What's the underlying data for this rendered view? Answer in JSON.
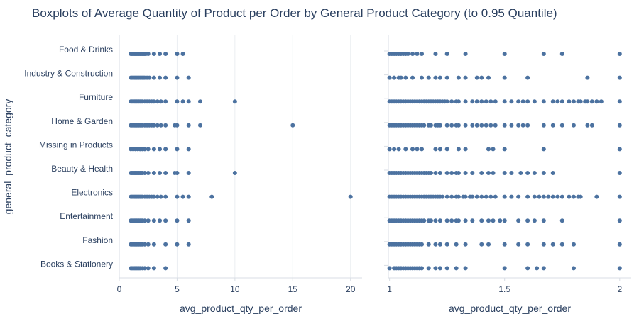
{
  "chart_data": {
    "type": "box",
    "title": "Boxplots of Average Quantity of Product per Order by General Product Category (to 0.95 Quantile)",
    "ylabel": "general_product_category",
    "marker_color": "#4c72a0",
    "categories": [
      "Food & Drinks",
      "Industry & Construction",
      "Furniture",
      "Home & Garden",
      "Missing in Products",
      "Beauty & Health",
      "Electronics",
      "Entertainment",
      "Fashion",
      "Books & Stationery"
    ],
    "panels": [
      {
        "name": "full",
        "xlabel": "avg_product_qty_per_order",
        "xlim": [
          0,
          21
        ],
        "xticks": [
          0,
          5,
          10,
          15,
          20
        ],
        "series": [
          {
            "category": "Food & Drinks",
            "values": [
              1,
              1.1,
              1.2,
              1.3,
              1.4,
              1.5,
              1.6,
              1.7,
              1.8,
              1.9,
              2,
              2.1,
              2.2,
              2.3,
              2.5,
              3,
              3.5,
              4,
              5,
              5.5
            ]
          },
          {
            "category": "Industry & Construction",
            "values": [
              1,
              1.1,
              1.2,
              1.3,
              1.4,
              1.5,
              1.6,
              1.7,
              1.8,
              1.9,
              2,
              2.1,
              2.2,
              2.4,
              2.6,
              3,
              3.5,
              4,
              5,
              6
            ]
          },
          {
            "category": "Furniture",
            "values": [
              1,
              1.1,
              1.2,
              1.3,
              1.4,
              1.5,
              1.6,
              1.7,
              1.8,
              1.9,
              2,
              2.2,
              2.4,
              2.6,
              2.8,
              3,
              3.3,
              3.6,
              4,
              5,
              5.5,
              6,
              7,
              10
            ]
          },
          {
            "category": "Home & Garden",
            "values": [
              1,
              1.1,
              1.2,
              1.3,
              1.4,
              1.5,
              1.6,
              1.7,
              1.8,
              1.9,
              2,
              2.2,
              2.4,
              2.6,
              2.8,
              3,
              3.3,
              3.6,
              4,
              4.8,
              5,
              6,
              7,
              15
            ]
          },
          {
            "category": "Missing in Products",
            "values": [
              1,
              1.2,
              1.4,
              1.6,
              1.8,
              2,
              2.2,
              2.5,
              3,
              3.5,
              4,
              5,
              6
            ]
          },
          {
            "category": "Beauty & Health",
            "values": [
              1,
              1.1,
              1.2,
              1.3,
              1.4,
              1.5,
              1.6,
              1.7,
              1.8,
              1.9,
              2,
              2.2,
              2.5,
              3,
              3.5,
              4,
              4.8,
              5,
              6,
              10
            ]
          },
          {
            "category": "Electronics",
            "values": [
              1,
              1.1,
              1.2,
              1.3,
              1.4,
              1.5,
              1.6,
              1.7,
              1.8,
              1.9,
              2,
              2.2,
              2.4,
              2.6,
              2.8,
              3,
              3.3,
              3.6,
              4,
              5,
              5.5,
              6,
              8,
              20
            ]
          },
          {
            "category": "Entertainment",
            "values": [
              1,
              1.1,
              1.2,
              1.3,
              1.4,
              1.5,
              1.6,
              1.7,
              1.8,
              1.9,
              2,
              2.2,
              2.5,
              3,
              3.5,
              4,
              5,
              6
            ]
          },
          {
            "category": "Fashion",
            "values": [
              1,
              1.1,
              1.2,
              1.3,
              1.4,
              1.5,
              1.6,
              1.7,
              1.8,
              1.9,
              2,
              2.2,
              2.5,
              3,
              4,
              5,
              6
            ]
          },
          {
            "category": "Books & Stationery",
            "values": [
              1,
              1.1,
              1.2,
              1.3,
              1.4,
              1.5,
              1.6,
              1.7,
              1.8,
              2,
              2.2,
              2.5,
              3,
              4
            ]
          }
        ]
      },
      {
        "name": "quantile",
        "xlabel": "avg_product_qty_per_order",
        "xlim": [
          0.995,
          2.05
        ],
        "xticks": [
          1,
          1.5,
          2
        ],
        "xticklabels": [
          "1",
          "1.5",
          "2"
        ],
        "series": [
          {
            "category": "Food & Drinks",
            "values": [
              1,
              1.01,
              1.02,
              1.03,
              1.04,
              1.05,
              1.06,
              1.07,
              1.08,
              1.1,
              1.12,
              1.14,
              1.2,
              1.25,
              1.33,
              1.5,
              1.67,
              1.75,
              2
            ]
          },
          {
            "category": "Industry & Construction",
            "values": [
              1,
              1.02,
              1.04,
              1.05,
              1.07,
              1.1,
              1.14,
              1.17,
              1.2,
              1.22,
              1.25,
              1.3,
              1.33,
              1.38,
              1.4,
              1.43,
              1.5,
              1.6,
              1.86,
              2
            ]
          },
          {
            "category": "Furniture",
            "values": [
              1,
              1.01,
              1.02,
              1.03,
              1.04,
              1.05,
              1.06,
              1.07,
              1.08,
              1.09,
              1.1,
              1.11,
              1.12,
              1.13,
              1.14,
              1.15,
              1.16,
              1.17,
              1.18,
              1.19,
              1.2,
              1.21,
              1.22,
              1.23,
              1.24,
              1.25,
              1.27,
              1.29,
              1.3,
              1.33,
              1.36,
              1.38,
              1.4,
              1.42,
              1.44,
              1.46,
              1.5,
              1.53,
              1.56,
              1.58,
              1.6,
              1.63,
              1.67,
              1.71,
              1.73,
              1.75,
              1.78,
              1.8,
              1.82,
              1.83,
              1.85,
              1.86,
              1.88,
              1.9,
              1.92,
              2
            ]
          },
          {
            "category": "Home & Garden",
            "values": [
              1,
              1.01,
              1.02,
              1.03,
              1.04,
              1.05,
              1.06,
              1.07,
              1.08,
              1.09,
              1.1,
              1.11,
              1.12,
              1.13,
              1.14,
              1.15,
              1.17,
              1.18,
              1.2,
              1.21,
              1.22,
              1.25,
              1.27,
              1.29,
              1.3,
              1.33,
              1.36,
              1.38,
              1.4,
              1.42,
              1.44,
              1.46,
              1.5,
              1.53,
              1.56,
              1.58,
              1.6,
              1.67,
              1.71,
              1.75,
              1.8,
              1.86,
              1.88,
              2
            ]
          },
          {
            "category": "Missing in Products",
            "values": [
              1,
              1.02,
              1.04,
              1.07,
              1.1,
              1.12,
              1.14,
              1.2,
              1.22,
              1.25,
              1.3,
              1.33,
              1.43,
              1.45,
              1.5,
              1.67,
              2
            ]
          },
          {
            "category": "Beauty & Health",
            "values": [
              1,
              1.01,
              1.02,
              1.03,
              1.04,
              1.05,
              1.06,
              1.07,
              1.08,
              1.09,
              1.1,
              1.11,
              1.12,
              1.13,
              1.14,
              1.15,
              1.16,
              1.17,
              1.18,
              1.2,
              1.22,
              1.25,
              1.27,
              1.29,
              1.3,
              1.33,
              1.36,
              1.4,
              1.43,
              1.45,
              1.5,
              1.53,
              1.57,
              1.6,
              1.63,
              1.67,
              1.71,
              2
            ]
          },
          {
            "category": "Electronics",
            "values": [
              1,
              1.01,
              1.02,
              1.03,
              1.04,
              1.05,
              1.06,
              1.07,
              1.08,
              1.09,
              1.1,
              1.11,
              1.12,
              1.13,
              1.14,
              1.15,
              1.16,
              1.17,
              1.18,
              1.19,
              1.2,
              1.21,
              1.22,
              1.23,
              1.25,
              1.27,
              1.29,
              1.3,
              1.32,
              1.33,
              1.35,
              1.36,
              1.38,
              1.4,
              1.42,
              1.44,
              1.46,
              1.5,
              1.53,
              1.56,
              1.6,
              1.63,
              1.65,
              1.67,
              1.69,
              1.71,
              1.73,
              1.75,
              1.78,
              1.8,
              1.82,
              1.83,
              1.9,
              2
            ]
          },
          {
            "category": "Entertainment",
            "values": [
              1,
              1.01,
              1.02,
              1.03,
              1.04,
              1.05,
              1.06,
              1.07,
              1.08,
              1.09,
              1.1,
              1.11,
              1.12,
              1.13,
              1.14,
              1.15,
              1.17,
              1.18,
              1.2,
              1.22,
              1.25,
              1.27,
              1.29,
              1.3,
              1.33,
              1.36,
              1.4,
              1.43,
              1.45,
              1.48,
              1.5,
              1.56,
              1.6,
              1.63,
              1.67,
              1.75,
              2
            ]
          },
          {
            "category": "Fashion",
            "values": [
              1,
              1.01,
              1.02,
              1.03,
              1.04,
              1.05,
              1.06,
              1.07,
              1.08,
              1.09,
              1.1,
              1.11,
              1.12,
              1.13,
              1.14,
              1.17,
              1.2,
              1.22,
              1.25,
              1.29,
              1.33,
              1.4,
              1.43,
              1.5,
              1.56,
              1.6,
              1.67,
              1.71,
              1.75,
              1.8,
              2
            ]
          },
          {
            "category": "Books & Stationery",
            "values": [
              1,
              1.02,
              1.03,
              1.04,
              1.05,
              1.06,
              1.07,
              1.08,
              1.09,
              1.1,
              1.11,
              1.12,
              1.13,
              1.14,
              1.17,
              1.2,
              1.22,
              1.25,
              1.29,
              1.33,
              1.5,
              1.6,
              1.64,
              1.67,
              1.8,
              2
            ]
          }
        ]
      }
    ]
  }
}
